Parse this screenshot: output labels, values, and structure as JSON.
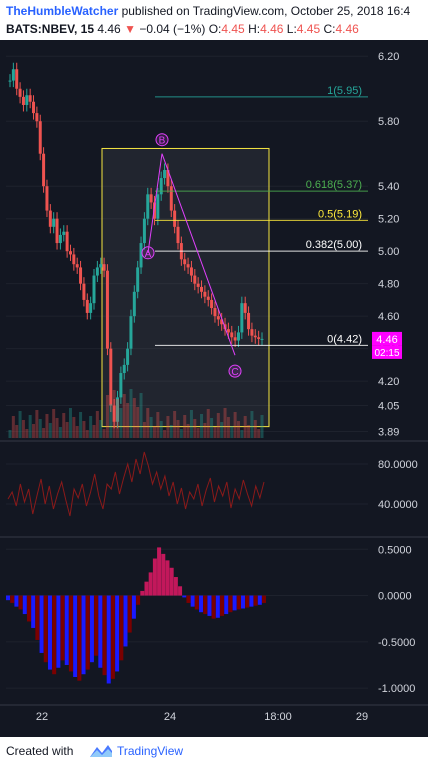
{
  "header": {
    "author": "TheHumbleWatcher",
    "published_text": " published on TradingView.com, October 25, 2018 16:4",
    "symbol": "BATS:NBEV, 15",
    "last": "4.46",
    "change": "−0.04 (−1%)",
    "o_label": "O:",
    "o_value": "4.45",
    "h_label": "H:",
    "h_value": "4.46",
    "l_label": "L:",
    "l_value": "4.45",
    "c_label": "C:",
    "c_value": "4.46"
  },
  "footer": {
    "created_with": "Created with",
    "brand": "TradingView"
  },
  "colors": {
    "background": "#131722",
    "up": "#26a69a",
    "down": "#ef5350",
    "fib_1": "#26a69a",
    "fib_618": "#4caf50",
    "fib_05": "#ffeb3b",
    "fib_0382": "#ffffff",
    "pattern": "#e040fb",
    "box": "#f5e642",
    "price_tag": "#ff00ff"
  },
  "chart_data": [
    {
      "type": "candlestick",
      "panel": "price",
      "yaxis_ticks": [
        "6.20",
        "5.80",
        "5.40",
        "5.20",
        "5.00",
        "4.80",
        "4.60",
        "4.40",
        "4.20",
        "4.05",
        "3.89"
      ],
      "yaxis_tick_values": [
        6.2,
        5.8,
        5.4,
        5.2,
        5.0,
        4.8,
        4.6,
        4.4,
        4.2,
        4.05,
        3.89
      ],
      "ylim": [
        3.85,
        6.3
      ],
      "last_price_tag": "4.46",
      "countdown_tag": "02:15",
      "x_ticks": [
        "22",
        "24",
        "18:00",
        "29"
      ],
      "fib_levels": [
        {
          "ratio": "1",
          "price": 5.95,
          "label": "1(5.95)"
        },
        {
          "ratio": "0.618",
          "price": 5.37,
          "label": "0.618(5.37)"
        },
        {
          "ratio": "0.5",
          "price": 5.19,
          "label": "0.5(5.19)"
        },
        {
          "ratio": "0.382",
          "price": 5.0,
          "label": "0.382(5.00)"
        },
        {
          "ratio": "0",
          "price": 4.42,
          "label": "0(4.42)"
        }
      ],
      "pattern_points": [
        {
          "label": "A",
          "price": 4.99
        },
        {
          "label": "B",
          "price": 5.6
        },
        {
          "label": "C",
          "price": 4.36
        }
      ],
      "close_series": [
        6.05,
        6.12,
        6.0,
        5.95,
        5.9,
        5.96,
        5.92,
        5.85,
        5.8,
        5.6,
        5.4,
        5.25,
        5.15,
        5.2,
        5.05,
        5.1,
        5.12,
        5.0,
        4.98,
        4.92,
        4.9,
        4.8,
        4.7,
        4.62,
        4.68,
        4.85,
        4.9,
        4.92,
        4.88,
        4.4,
        4.05,
        3.95,
        4.1,
        4.25,
        4.3,
        4.4,
        4.6,
        4.75,
        4.9,
        5.05,
        5.2,
        5.35,
        5.3,
        5.2,
        5.35,
        5.45,
        5.5,
        5.4,
        5.25,
        5.15,
        5.05,
        4.95,
        4.92,
        4.9,
        4.85,
        4.8,
        4.78,
        4.75,
        4.72,
        4.7,
        4.65,
        4.6,
        4.58,
        4.55,
        4.52,
        4.5,
        4.47,
        4.45,
        4.5,
        4.68,
        4.62,
        4.52,
        4.48,
        4.47,
        4.46,
        4.46
      ]
    },
    {
      "type": "line",
      "panel": "oscillator",
      "yaxis_ticks": [
        "80.0000",
        "40.0000"
      ],
      "yaxis_tick_values": [
        80,
        40
      ],
      "ylim": [
        10,
        100
      ],
      "values": [
        45,
        52,
        38,
        60,
        42,
        55,
        30,
        48,
        65,
        40,
        58,
        35,
        50,
        62,
        44,
        28,
        55,
        46,
        60,
        38,
        52,
        70,
        48,
        35,
        60,
        55,
        72,
        50,
        66,
        80,
        62,
        85,
        70,
        92,
        78,
        60,
        72,
        55,
        68,
        48,
        62,
        40,
        56,
        35,
        52,
        45,
        60,
        38,
        54,
        66,
        42,
        58,
        48,
        62,
        36,
        55,
        45,
        64,
        50,
        38,
        58,
        46,
        62
      ]
    },
    {
      "type": "histogram",
      "panel": "momentum",
      "yaxis_ticks": [
        "0.5000",
        "0.0000",
        "-0.5000",
        "-1.0000"
      ],
      "yaxis_tick_values": [
        0.5,
        0,
        -0.5,
        -1.0
      ],
      "ylim": [
        -1.15,
        0.6
      ],
      "values": [
        -0.05,
        -0.08,
        -0.12,
        -0.15,
        -0.2,
        -0.28,
        -0.35,
        -0.48,
        -0.62,
        -0.72,
        -0.8,
        -0.85,
        -0.78,
        -0.7,
        -0.75,
        -0.82,
        -0.88,
        -0.92,
        -0.85,
        -0.8,
        -0.72,
        -0.65,
        -0.78,
        -0.86,
        -0.95,
        -0.9,
        -0.82,
        -0.7,
        -0.55,
        -0.4,
        -0.25,
        -0.1,
        0.05,
        0.15,
        0.25,
        0.4,
        0.52,
        0.45,
        0.38,
        0.3,
        0.2,
        0.1,
        -0.02,
        -0.08,
        -0.12,
        -0.15,
        -0.18,
        -0.2,
        -0.22,
        -0.25,
        -0.24,
        -0.22,
        -0.2,
        -0.18,
        -0.16,
        -0.15,
        -0.14,
        -0.13,
        -0.12,
        -0.11,
        -0.1,
        -0.08
      ]
    }
  ]
}
